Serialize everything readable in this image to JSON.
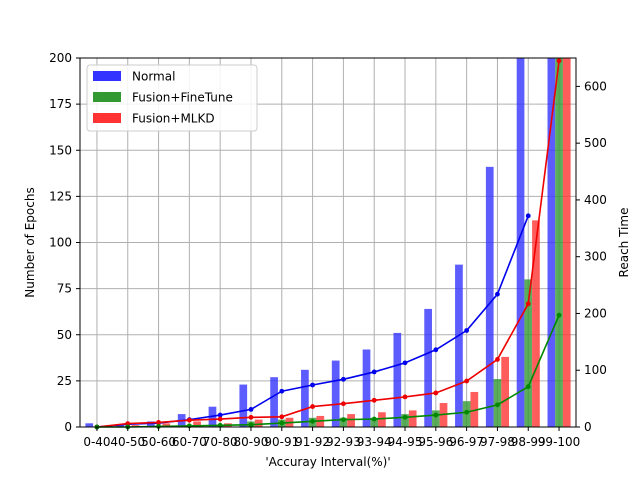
{
  "chart_data": {
    "type": "bar",
    "categories": [
      "0-40",
      "40-50",
      "50-60",
      "60-70",
      "70-80",
      "80-90",
      "90-91",
      "91-92",
      "92-93",
      "93-94",
      "94-95",
      "95-96",
      "96-97",
      "97-98",
      "98-99",
      "99-100"
    ],
    "xlabel": "'Accuray Interval(%)'",
    "ylabel": "Number of Epochs",
    "ylabel_right": "Reach Time",
    "ylim": [
      0,
      200
    ],
    "ylim_right": [
      0,
      650
    ],
    "yticks": [
      0,
      25,
      50,
      75,
      100,
      125,
      150,
      175,
      200
    ],
    "yticks_right": [
      0,
      100,
      200,
      300,
      400,
      500,
      600
    ],
    "grid": true,
    "legend_position": "top-left",
    "series": [
      {
        "name": "Normal",
        "kind": "bar",
        "color": "#3333ff",
        "values": [
          2,
          1,
          3,
          7,
          11,
          23,
          27,
          31,
          36,
          42,
          51,
          64,
          88,
          141,
          200,
          200
        ]
      },
      {
        "name": "Fusion+FineTune",
        "kind": "bar",
        "color": "#339933",
        "values": [
          0,
          0,
          0,
          1,
          1,
          3,
          4,
          5,
          5,
          5,
          7,
          9,
          14,
          26,
          80,
          200
        ]
      },
      {
        "name": "Fusion+MLKD",
        "kind": "bar",
        "color": "#ff3333",
        "values": [
          0,
          1,
          2,
          3,
          2,
          4,
          5,
          6,
          7,
          8,
          9,
          13,
          19,
          38,
          112,
          200
        ]
      }
    ],
    "lines": [
      {
        "kind": "line",
        "axis": "right",
        "color": "#0000ee",
        "values": [
          0,
          5,
          7,
          13,
          21,
          31,
          63,
          74,
          84,
          97,
          113,
          136,
          170,
          234,
          372,
          null
        ]
      },
      {
        "kind": "line",
        "axis": "right",
        "color": "#ee0000",
        "values": [
          0,
          6,
          8,
          12,
          14,
          17,
          18,
          36,
          41,
          47,
          53,
          60,
          81,
          119,
          217,
          645
        ]
      },
      {
        "kind": "line",
        "axis": "right",
        "color": "#008800",
        "values": [
          0,
          0,
          1,
          2,
          3,
          4,
          7,
          10,
          13,
          14,
          17,
          21,
          26,
          39,
          71,
          197
        ]
      }
    ]
  }
}
